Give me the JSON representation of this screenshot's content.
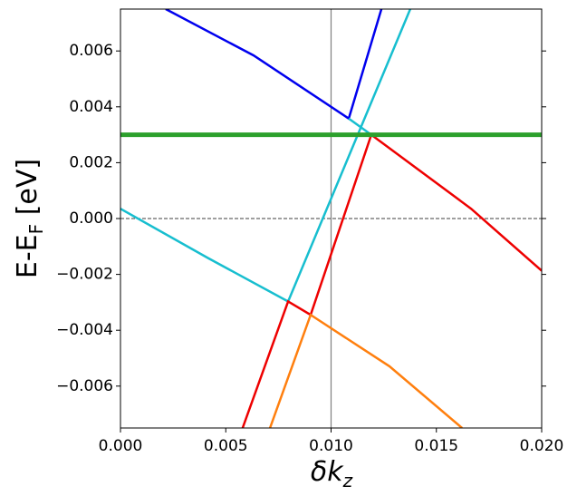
{
  "chart_data": {
    "type": "line",
    "x_label": [
      "δk",
      "z"
    ],
    "y_label": [
      "E-E",
      "F",
      " [eV]"
    ],
    "xlim": [
      0,
      0.02
    ],
    "ylim": [
      -0.0075,
      0.0075
    ],
    "xticks": [
      {
        "value": 0,
        "label": "0.000"
      },
      0.005,
      {
        "value": 0.01,
        "label": "0.010"
      },
      0.015,
      {
        "value": 0.02,
        "label": "0.020"
      }
    ],
    "yticks": [
      {
        "value": -0.006,
        "label": "−0.006"
      },
      {
        "value": -0.004,
        "label": "−0.004"
      },
      {
        "value": -0.002,
        "label": "−0.002"
      },
      {
        "value": 0,
        "label": "0.000"
      },
      0.002,
      0.004,
      0.006
    ],
    "vlines": [
      {
        "value": 0.01,
        "color": "#808080"
      }
    ],
    "hlines": [
      {
        "value": 0,
        "color": "#000000",
        "dashed": true
      }
    ],
    "series": [
      {
        "color": "#0000ee",
        "width": 2.5,
        "x": [
          0.00215,
          0.00632,
          0.01084,
          0.01239
        ],
        "values": [
          0.0075,
          0.00584,
          0.00358,
          0.0075
        ]
      },
      {
        "color": "#17becf",
        "width": 2.5,
        "x": [
          0,
          0.00417,
          0.00796,
          0.01376,
          null,
          0.01084,
          0.01191
        ],
        "values": [
          0.00035,
          -0.00142,
          -0.00297,
          0.0075,
          null,
          0.00358,
          0.003
        ]
      },
      {
        "color": "#ee0000",
        "width": 2.5,
        "x": [
          0.0058,
          0.00796,
          0.00903,
          0.01191,
          0.01665,
          0.02
        ],
        "values": [
          -0.0075,
          -0.00297,
          -0.00345,
          0.003,
          0.00035,
          -0.00187
        ]
      },
      {
        "color": "#ff7f0e",
        "width": 2.5,
        "x": [
          0.0071,
          0.00903,
          0.01277,
          0.01622
        ],
        "values": [
          -0.0075,
          -0.00345,
          -0.00529,
          -0.0075
        ]
      },
      {
        "color": "#2ca02c",
        "width": 5,
        "x": [
          0,
          0.02
        ],
        "values": [
          0.003,
          0.003
        ]
      }
    ]
  }
}
